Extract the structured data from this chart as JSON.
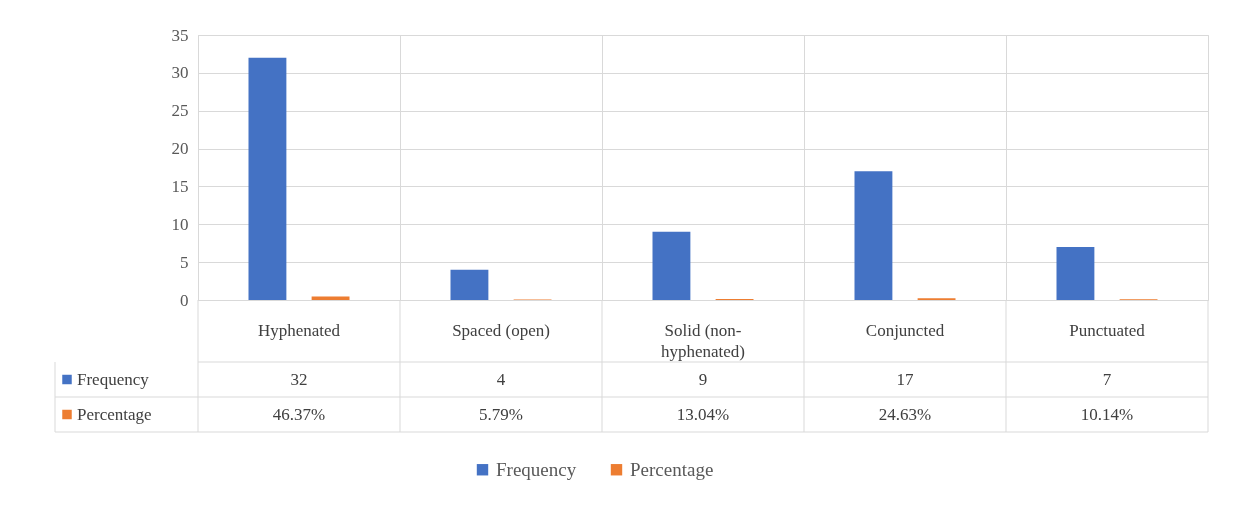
{
  "chart_data": {
    "type": "bar",
    "categories": [
      "Hyphenated",
      "Spaced (open)",
      "Solid (non-hyphenated)",
      "Conjuncted",
      "Punctuated"
    ],
    "series": [
      {
        "name": "Frequency",
        "color": "#4472c4",
        "values": [
          32,
          4,
          9,
          17,
          7
        ],
        "value_labels": [
          "32",
          "4",
          "9",
          "17",
          "7"
        ]
      },
      {
        "name": "Percentage",
        "color": "#ed7d31",
        "values": [
          0.4637,
          0.0579,
          0.1304,
          0.2463,
          0.1014
        ],
        "value_labels": [
          "46.37%",
          "5.79%",
          "13.04%",
          "24.63%",
          "10.14%"
        ]
      }
    ],
    "ylim": [
      0,
      35
    ],
    "yticks": [
      0,
      5,
      10,
      15,
      20,
      25,
      30,
      35
    ],
    "grid": true,
    "legend": "bottom"
  }
}
